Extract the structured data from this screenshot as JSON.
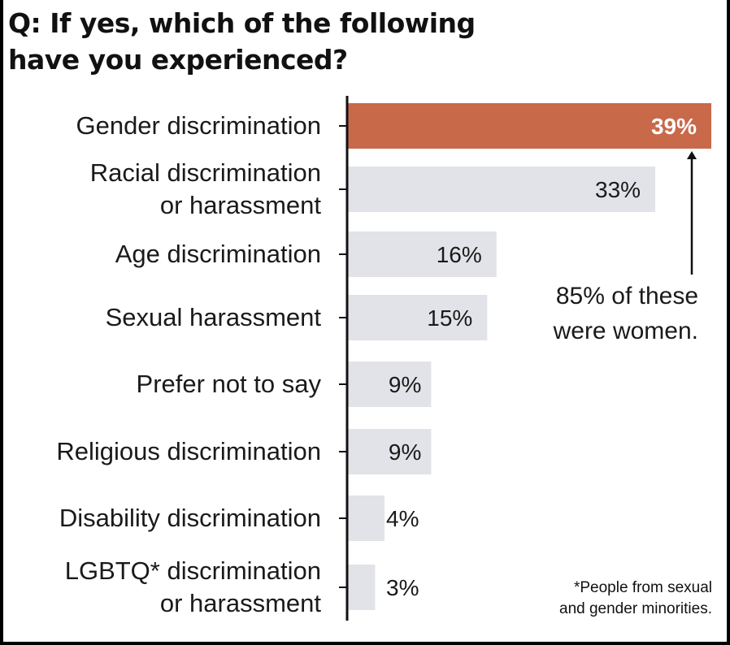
{
  "title_lines": [
    "Q: If yes, which of the following",
    "have you experienced?"
  ],
  "colors": {
    "highlight": "#c8694a",
    "bar": "#e2e3e8",
    "axis": "#111111"
  },
  "chart_data": {
    "type": "bar",
    "orientation": "horizontal",
    "title": "Q: If yes, which of the following have you experienced?",
    "categories": [
      [
        "Gender discrimination"
      ],
      [
        "Racial discrimination",
        "or harassment"
      ],
      [
        "Age discrimination"
      ],
      [
        "Sexual harassment"
      ],
      [
        "Prefer not to say"
      ],
      [
        "Religious discrimination"
      ],
      [
        "Disability discrimination"
      ],
      [
        "LGBTQ* discrimination",
        "or harassment"
      ]
    ],
    "values": [
      39,
      33,
      16,
      15,
      9,
      9,
      4,
      3
    ],
    "value_labels": [
      "39%",
      "33%",
      "16%",
      "15%",
      "9%",
      "9%",
      "4%",
      "3%"
    ],
    "highlight_index": 0,
    "xlim": [
      0,
      39
    ],
    "grid": false,
    "legend": "none",
    "annotation": {
      "lines": [
        "85% of these",
        "were women."
      ],
      "target_index": 0
    },
    "footnote_lines": [
      "*People from sexual",
      "and gender minorities."
    ]
  }
}
